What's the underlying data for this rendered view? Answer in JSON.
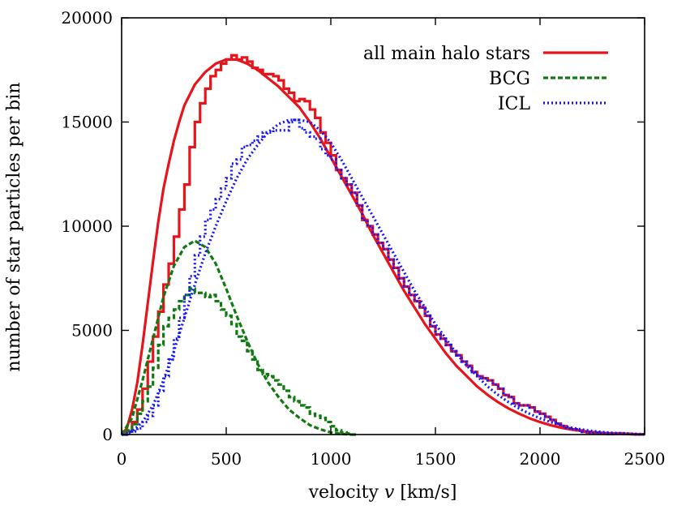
{
  "chart_data": {
    "type": "line",
    "title": "",
    "xlabel": "velocity v [km/s]",
    "xlabel_prefix": "velocity ",
    "xlabel_var": "v",
    "xlabel_suffix": " [km/s]",
    "ylabel": "number of star particles per bin",
    "xlim": [
      0,
      2500
    ],
    "ylim": [
      0,
      20000
    ],
    "xticks": [
      0,
      500,
      1000,
      1500,
      2000,
      2500
    ],
    "yticks": [
      0,
      5000,
      10000,
      15000,
      20000
    ],
    "xtick_labels": [
      "0",
      "500",
      "1000",
      "1500",
      "2000",
      "2500"
    ],
    "ytick_labels": [
      "0",
      "5000",
      "10000",
      "15000",
      "20000"
    ],
    "legend_position": "top-right",
    "series": [
      {
        "name": "all main halo stars",
        "color": "#e8141c",
        "dash": "solid",
        "histogram": {
          "x": [
            0,
            25,
            50,
            75,
            100,
            125,
            150,
            175,
            200,
            225,
            250,
            275,
            300,
            325,
            350,
            375,
            400,
            425,
            450,
            475,
            500,
            525,
            550,
            575,
            600,
            625,
            650,
            675,
            700,
            725,
            750,
            775,
            800,
            825,
            850,
            875,
            900,
            925,
            950,
            975,
            1000,
            1025,
            1050,
            1075,
            1100,
            1125,
            1150,
            1175,
            1200,
            1225,
            1250,
            1275,
            1300,
            1325,
            1350,
            1375,
            1400,
            1425,
            1450,
            1475,
            1500,
            1525,
            1550,
            1575,
            1600,
            1625,
            1650,
            1675,
            1700,
            1725,
            1750,
            1775,
            1800,
            1825,
            1850,
            1875,
            1900,
            1925,
            1950,
            1975,
            2000,
            2025,
            2050,
            2075,
            2100,
            2125,
            2150,
            2175,
            2200,
            2225,
            2250,
            2275,
            2300,
            2325,
            2350,
            2375,
            2400,
            2425,
            2450,
            2475
          ],
          "y": [
            0,
            150,
            600,
            1200,
            2200,
            3500,
            4700,
            5900,
            7200,
            8200,
            9500,
            10800,
            12000,
            13800,
            15000,
            15900,
            16600,
            17200,
            17500,
            17800,
            18000,
            18200,
            18000,
            18100,
            17900,
            17600,
            17500,
            17300,
            17300,
            17200,
            17000,
            16600,
            16400,
            16000,
            16100,
            16000,
            15600,
            15200,
            14500,
            14000,
            13400,
            12700,
            12300,
            12000,
            11600,
            11000,
            10300,
            10000,
            9600,
            9200,
            8900,
            8400,
            8000,
            7500,
            7100,
            6700,
            6400,
            6100,
            5700,
            5200,
            4800,
            4600,
            4300,
            4000,
            3800,
            3500,
            3300,
            3000,
            2800,
            2700,
            2600,
            2400,
            2200,
            1900,
            1800,
            1500,
            1400,
            1400,
            1300,
            1100,
            1000,
            850,
            700,
            520,
            400,
            300,
            250,
            200,
            130,
            90,
            70,
            50,
            40,
            30,
            40,
            60,
            40,
            20,
            10,
            5
          ]
        },
        "curve": {
          "x": [
            0,
            25,
            50,
            75,
            100,
            125,
            150,
            175,
            200,
            225,
            250,
            275,
            300,
            350,
            400,
            450,
            500,
            550,
            600,
            650,
            700,
            750,
            800,
            850,
            900,
            950,
            1000,
            1050,
            1100,
            1150,
            1200,
            1250,
            1300,
            1350,
            1400,
            1450,
            1500,
            1550,
            1600,
            1650,
            1700,
            1750,
            1800,
            1850,
            1900,
            1950,
            2000,
            2050,
            2100,
            2150,
            2200,
            2250,
            2300,
            2350,
            2400,
            2450,
            2500
          ],
          "y": [
            0,
            300,
            1200,
            2500,
            4300,
            6300,
            8300,
            10200,
            11800,
            13000,
            14100,
            15000,
            15800,
            16800,
            17400,
            17800,
            18000,
            18000,
            17800,
            17500,
            17100,
            16700,
            16200,
            15700,
            15000,
            14200,
            13300,
            12400,
            11500,
            10600,
            9600,
            8700,
            7800,
            6900,
            6100,
            5300,
            4600,
            3900,
            3300,
            2800,
            2300,
            1900,
            1550,
            1250,
            1000,
            780,
            600,
            450,
            330,
            240,
            170,
            120,
            80,
            55,
            35,
            20,
            10
          ]
        }
      },
      {
        "name": "BCG",
        "color": "#0f7a0f",
        "dash": "6,3",
        "histogram": {
          "x": [
            0,
            25,
            50,
            75,
            100,
            125,
            150,
            175,
            200,
            225,
            250,
            275,
            300,
            325,
            350,
            375,
            400,
            425,
            450,
            475,
            500,
            525,
            550,
            575,
            600,
            625,
            650,
            675,
            700,
            725,
            750,
            775,
            800,
            825,
            850,
            875,
            900,
            925,
            950,
            975,
            1000,
            1025,
            1050,
            1075,
            1100
          ],
          "y": [
            0,
            200,
            500,
            1000,
            1600,
            2300,
            3200,
            4300,
            5200,
            5600,
            6000,
            6400,
            6700,
            7000,
            6800,
            6800,
            6600,
            6700,
            6400,
            6000,
            5700,
            5300,
            4700,
            4500,
            4000,
            3600,
            3100,
            2900,
            2800,
            2600,
            2400,
            2100,
            1800,
            1600,
            1400,
            1300,
            1000,
            900,
            800,
            600,
            400,
            200,
            100,
            50,
            0
          ]
        },
        "curve": {
          "x": [
            0,
            50,
            100,
            150,
            200,
            250,
            300,
            350,
            400,
            450,
            500,
            550,
            600,
            650,
            700,
            750,
            800,
            850,
            900,
            950,
            1000,
            1050,
            1100
          ],
          "y": [
            0,
            800,
            2600,
            4600,
            6600,
            8100,
            9000,
            9300,
            9000,
            8200,
            7000,
            5700,
            4500,
            3400,
            2500,
            1800,
            1200,
            800,
            450,
            250,
            100,
            30,
            0
          ]
        }
      },
      {
        "name": "ICL",
        "color": "#1414ff",
        "dash": "2,3",
        "histogram": {
          "x": [
            0,
            25,
            50,
            75,
            100,
            125,
            150,
            175,
            200,
            225,
            250,
            275,
            300,
            325,
            350,
            375,
            400,
            425,
            450,
            475,
            500,
            525,
            550,
            575,
            600,
            625,
            650,
            675,
            700,
            725,
            750,
            775,
            800,
            825,
            850,
            875,
            900,
            925,
            950,
            975,
            1000,
            1025,
            1050,
            1075,
            1100,
            1125,
            1150,
            1175,
            1200,
            1225,
            1250,
            1275,
            1300,
            1325,
            1350,
            1375,
            1400,
            1425,
            1450,
            1475,
            1500,
            1525,
            1550,
            1575,
            1600,
            1625,
            1650,
            1675,
            1700,
            1725,
            1750,
            1775,
            1800,
            1825,
            1850,
            1875,
            1900,
            1925,
            1950,
            1975,
            2000,
            2025,
            2050,
            2075,
            2100,
            2125,
            2150,
            2175,
            2200,
            2225,
            2250,
            2275,
            2300,
            2325,
            2350,
            2375,
            2400,
            2425,
            2450,
            2475
          ],
          "y": [
            0,
            50,
            150,
            300,
            600,
            900,
            1400,
            2100,
            2800,
            3600,
            4600,
            5600,
            6700,
            7600,
            8600,
            9500,
            10300,
            10800,
            11300,
            11800,
            12300,
            13000,
            13200,
            13800,
            13900,
            14100,
            14300,
            14500,
            14500,
            14600,
            14600,
            14600,
            15000,
            15100,
            14700,
            14500,
            14300,
            14200,
            13700,
            13400,
            13200,
            12700,
            12300,
            12000,
            11600,
            11000,
            10300,
            10000,
            9600,
            9200,
            8900,
            8400,
            8000,
            7500,
            7100,
            6700,
            6400,
            6100,
            5700,
            5200,
            4800,
            4600,
            4300,
            4000,
            3800,
            3500,
            3300,
            3000,
            2800,
            2700,
            2600,
            2400,
            2200,
            1900,
            1800,
            1500,
            1400,
            1400,
            1300,
            1100,
            1000,
            850,
            700,
            520,
            400,
            300,
            250,
            200,
            130,
            90,
            70,
            50,
            40,
            30,
            40,
            60,
            40,
            20,
            10,
            5
          ]
        },
        "curve": {
          "x": [
            0,
            50,
            100,
            150,
            200,
            250,
            300,
            350,
            400,
            450,
            500,
            550,
            600,
            650,
            700,
            750,
            800,
            850,
            900,
            950,
            1000,
            1050,
            1100,
            1150,
            1200,
            1250,
            1300,
            1350,
            1400,
            1450,
            1500,
            1550,
            1600,
            1650,
            1700,
            1750,
            1800,
            1850,
            1900,
            1950,
            2000,
            2050,
            2100,
            2150,
            2200,
            2250,
            2300,
            2350,
            2400,
            2450,
            2500
          ],
          "y": [
            0,
            150,
            600,
            1400,
            2600,
            4000,
            5600,
            7200,
            8700,
            10000,
            11200,
            12300,
            13200,
            13900,
            14500,
            14900,
            15100,
            15100,
            15000,
            14600,
            14000,
            13200,
            12300,
            11400,
            10500,
            9600,
            8700,
            7800,
            6900,
            6100,
            5300,
            4600,
            3900,
            3300,
            2800,
            2300,
            1900,
            1550,
            1250,
            1000,
            780,
            600,
            450,
            330,
            240,
            170,
            120,
            80,
            55,
            35,
            20
          ]
        }
      }
    ]
  }
}
